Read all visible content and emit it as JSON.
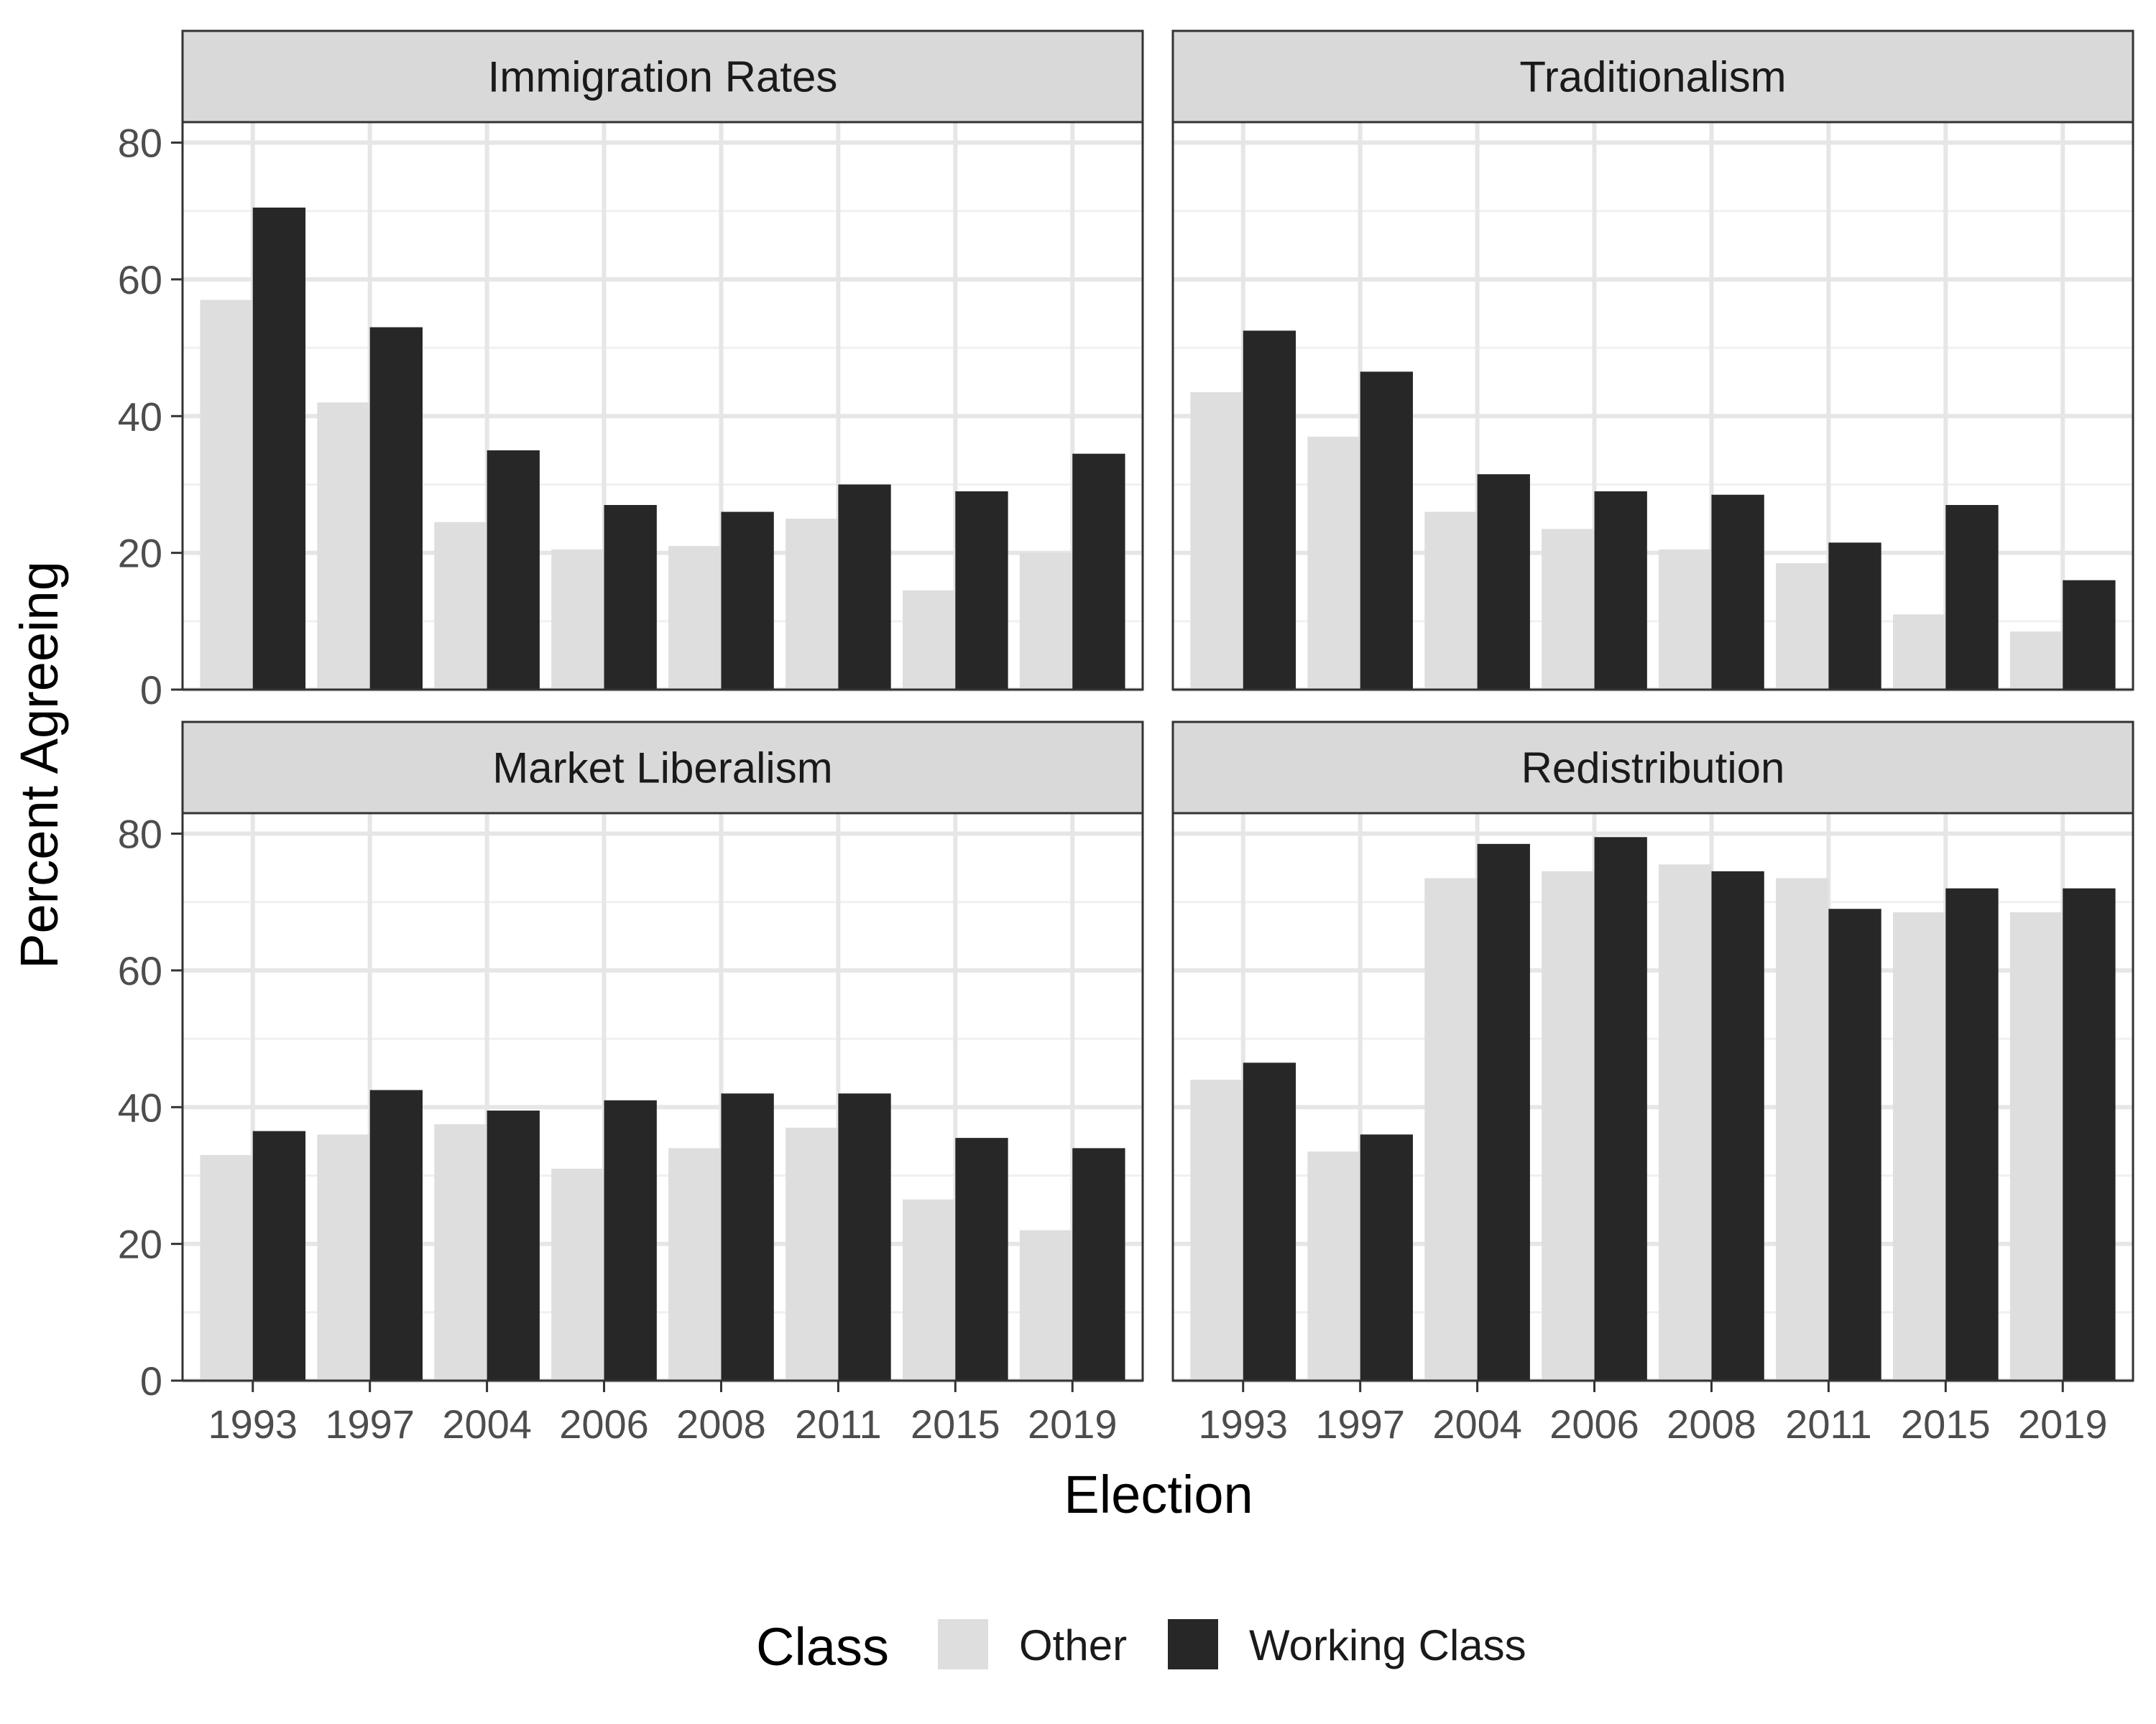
{
  "chart_data": {
    "type": "bar",
    "xlabel": "Election",
    "ylabel": "Percent Agreeing",
    "ylim": [
      0,
      83
    ],
    "yticks": [
      0,
      20,
      40,
      60,
      80
    ],
    "grid": true,
    "categories": [
      "1993",
      "1997",
      "2004",
      "2006",
      "2008",
      "2011",
      "2015",
      "2019"
    ],
    "legend": {
      "title": "Class",
      "placement": "bottom",
      "entries": [
        {
          "name": "Other",
          "color": "#dedede"
        },
        {
          "name": "Working Class",
          "color": "#272727"
        }
      ]
    },
    "panels": [
      {
        "title": "Immigration Rates",
        "series": [
          {
            "name": "Other",
            "values": [
              57,
              42,
              24.5,
              20.5,
              21,
              25,
              14.5,
              20
            ]
          },
          {
            "name": "Working Class",
            "values": [
              70.5,
              53,
              35,
              27,
              26,
              30,
              29,
              34.5
            ]
          }
        ]
      },
      {
        "title": "Traditionalism",
        "series": [
          {
            "name": "Other",
            "values": [
              43.5,
              37,
              26,
              23.5,
              20.5,
              18.5,
              11,
              8.5
            ]
          },
          {
            "name": "Working Class",
            "values": [
              52.5,
              46.5,
              31.5,
              29,
              28.5,
              21.5,
              27,
              16
            ]
          }
        ]
      },
      {
        "title": "Market Liberalism",
        "series": [
          {
            "name": "Other",
            "values": [
              33,
              36,
              37.5,
              31,
              34,
              37,
              26.5,
              22
            ]
          },
          {
            "name": "Working Class",
            "values": [
              36.5,
              42.5,
              39.5,
              41,
              42,
              42,
              35.5,
              34
            ]
          }
        ]
      },
      {
        "title": "Redistribution",
        "series": [
          {
            "name": "Other",
            "values": [
              44,
              33.5,
              73.5,
              74.5,
              75.5,
              73.5,
              68.5,
              68.5
            ]
          },
          {
            "name": "Working Class",
            "values": [
              46.5,
              36,
              78.5,
              79.5,
              74.5,
              69,
              72,
              72
            ]
          }
        ]
      }
    ]
  }
}
